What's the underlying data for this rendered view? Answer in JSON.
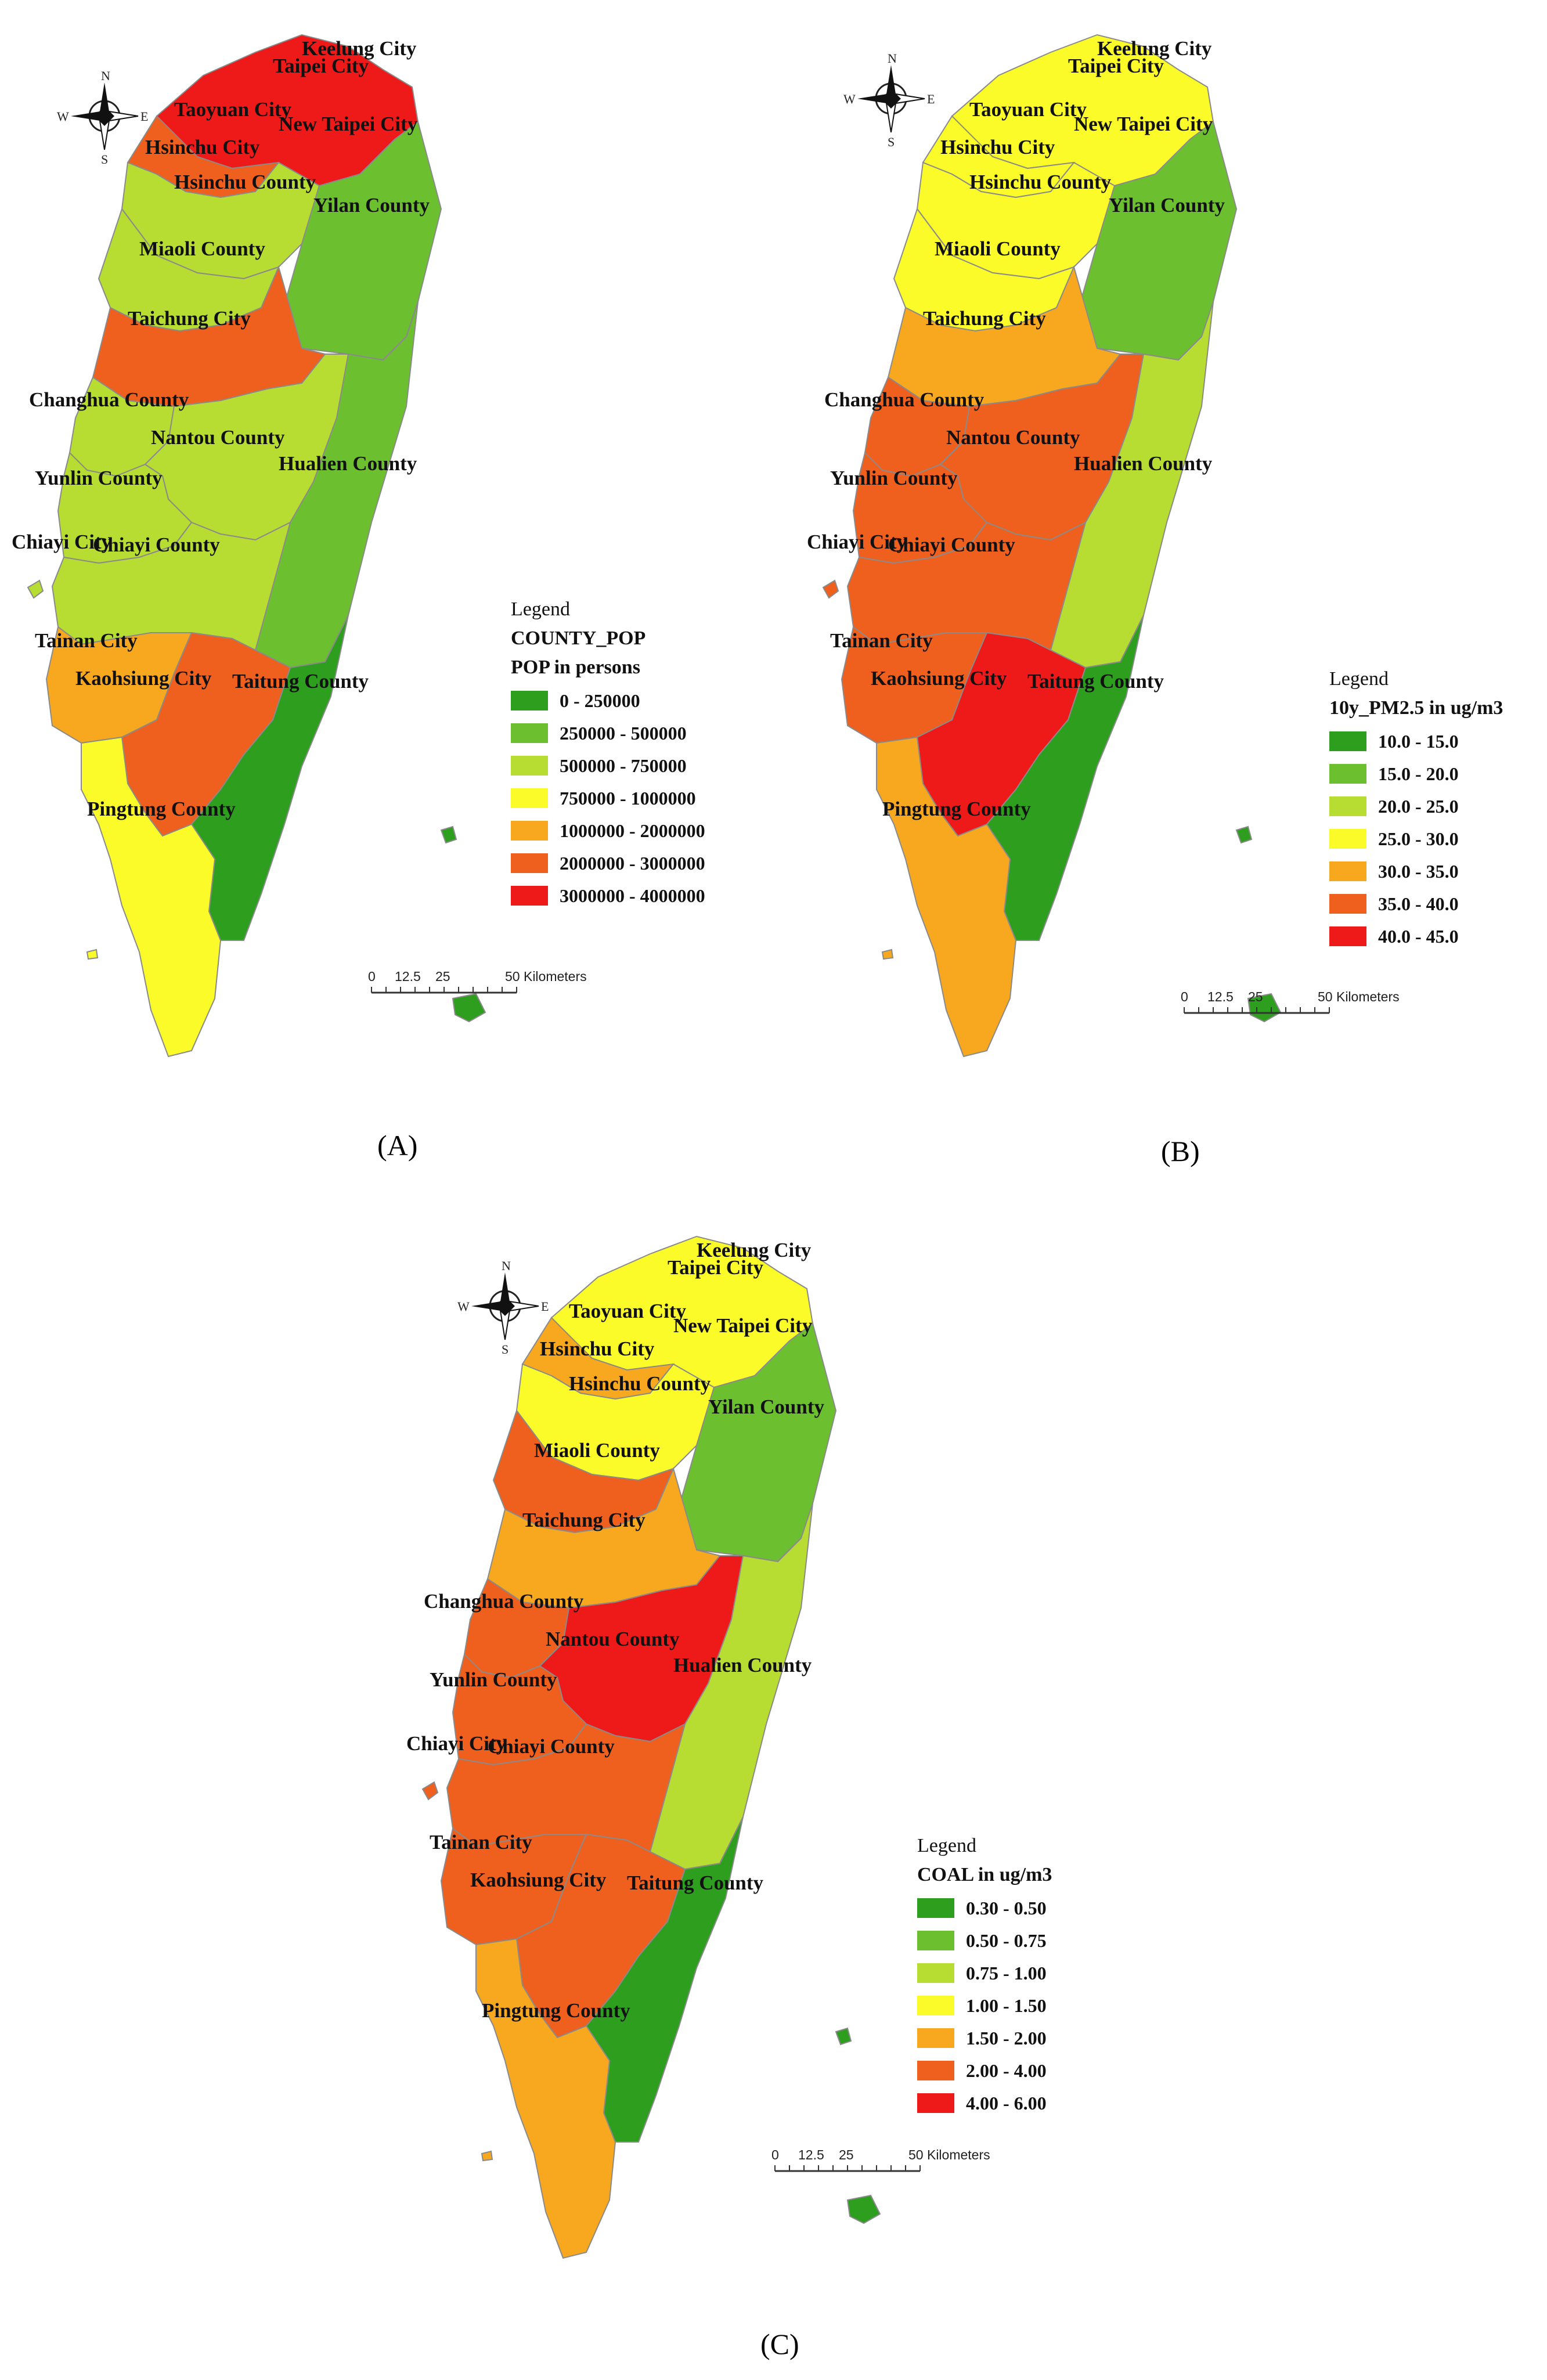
{
  "colors": {
    "c1": "#2e9e1e",
    "c2": "#6cbf2f",
    "c3": "#b7dc32",
    "c4": "#fbfb2a",
    "c5": "#f7a81f",
    "c6": "#ef5f1e",
    "c7": "#ee1919"
  },
  "compass": {
    "n": "N",
    "s": "S",
    "e": "E",
    "w": "W"
  },
  "scale": {
    "t0": "0",
    "t1": "12.5",
    "t2": "25",
    "t3": "50 Kilometers"
  },
  "panels": [
    {
      "label": "(A)",
      "legend": {
        "heading": "Legend",
        "layer": "COUNTY_POP",
        "field": "POP in persons",
        "classes": [
          "0 - 250000",
          "250000 - 500000",
          "500000 - 750000",
          "750000 - 1000000",
          "1000000 - 2000000",
          "2000000 - 3000000",
          "3000000 - 4000000"
        ]
      },
      "regions": {
        "north": "c7",
        "taoyuan": "c6",
        "hsinchu": "c3",
        "miaoli": "c3",
        "yilan": "c2",
        "taichung": "c6",
        "changhua": "c3",
        "nantou": "c3",
        "hualien": "c2",
        "yunlin": "c3",
        "chiayi": "c3",
        "tainan": "c5",
        "kaohsiung": "c6",
        "taitung": "c1",
        "pingtung": "c4"
      },
      "labels": {
        "keelung": "Keelung City",
        "taipei": "Taipei City",
        "new_taipei": "New Taipei City",
        "taoyuan": "Taoyuan City",
        "hsinchu_city": "Hsinchu City",
        "hsinchu_county": "Hsinchu County",
        "yilan": "Yilan County",
        "miaoli": "Miaoli County",
        "taichung": "Taichung City",
        "changhua": "Changhua County",
        "nantou": "Nantou County",
        "hualien": "Hualien County",
        "yunlin": "Yunlin County",
        "chiayi_city": "Chiayi City",
        "chiayi_county": "Chiayi County",
        "tainan": "Tainan City",
        "kaohsiung": "Kaohsiung City",
        "taitung": "Taitung County",
        "pingtung": "Pingtung County"
      }
    },
    {
      "label": "(B)",
      "legend": {
        "heading": "Legend",
        "layer": "10y_PM2.5 in ug/m3",
        "field": "",
        "classes": [
          "10.0 - 15.0",
          "15.0 - 20.0",
          "20.0 - 25.0",
          "25.0 - 30.0",
          "30.0 - 35.0",
          "35.0 - 40.0",
          "40.0 - 45.0"
        ]
      },
      "regions": {
        "north": "c4",
        "taoyuan": "c4",
        "hsinchu": "c4",
        "miaoli": "c4",
        "yilan": "c2",
        "taichung": "c5",
        "changhua": "c6",
        "nantou": "c6",
        "hualien": "c3",
        "yunlin": "c6",
        "chiayi": "c6",
        "tainan": "c6",
        "kaohsiung": "c7",
        "taitung": "c1",
        "pingtung": "c5"
      },
      "labels": {
        "keelung": "Keelung City",
        "taipei": "Taipei City",
        "new_taipei": "New Taipei City",
        "taoyuan": "Taoyuan City",
        "hsinchu_city": "Hsinchu City",
        "hsinchu_county": "Hsinchu County",
        "yilan": "Yilan County",
        "miaoli": "Miaoli County",
        "taichung": "Taichung City",
        "changhua": "Changhua County",
        "nantou": "Nantou County",
        "hualien": "Hualien County",
        "yunlin": "Yunlin County",
        "chiayi_city": "Chiayi City",
        "chiayi_county": "Chiayi County",
        "tainan": "Tainan City",
        "kaohsiung": "Kaohsiung City",
        "taitung": "Taitung County",
        "pingtung": "Pingtung County"
      }
    },
    {
      "label": "(C)",
      "legend": {
        "heading": "Legend",
        "layer": "COAL in ug/m3",
        "field": "",
        "classes": [
          "0.30 - 0.50",
          "0.50 - 0.75",
          "0.75 - 1.00",
          "1.00 - 1.50",
          "1.50 - 2.00",
          "2.00 - 4.00",
          "4.00 - 6.00"
        ]
      },
      "regions": {
        "north": "c4",
        "taoyuan": "c5",
        "hsinchu": "c4",
        "miaoli": "c6",
        "yilan": "c2",
        "taichung": "c5",
        "changhua": "c6",
        "nantou": "c7",
        "hualien": "c3",
        "yunlin": "c6",
        "chiayi": "c6",
        "tainan": "c6",
        "kaohsiung": "c6",
        "taitung": "c1",
        "pingtung": "c5"
      },
      "labels": {
        "keelung": "Keelung City",
        "taipei": "Taipei City",
        "new_taipei": "New Taipei City",
        "taoyuan": "Taoyuan City",
        "hsinchu_city": "Hsinchu City",
        "hsinchu_county": "Hsinchu County",
        "yilan": "Yilan County",
        "miaoli": "Miaoli County",
        "taichung": "Taichung City",
        "changhua": "Changhua County",
        "nantou": "Nantou County",
        "hualien": "Hualien County",
        "yunlin": "Yunlin County",
        "chiayi_city": "Chiayi City",
        "chiayi_county": "Chiayi County",
        "tainan": "Tainan City",
        "kaohsiung": "Kaohsiung City",
        "taitung": "Taitung County",
        "pingtung": "Pingtung County"
      }
    }
  ]
}
